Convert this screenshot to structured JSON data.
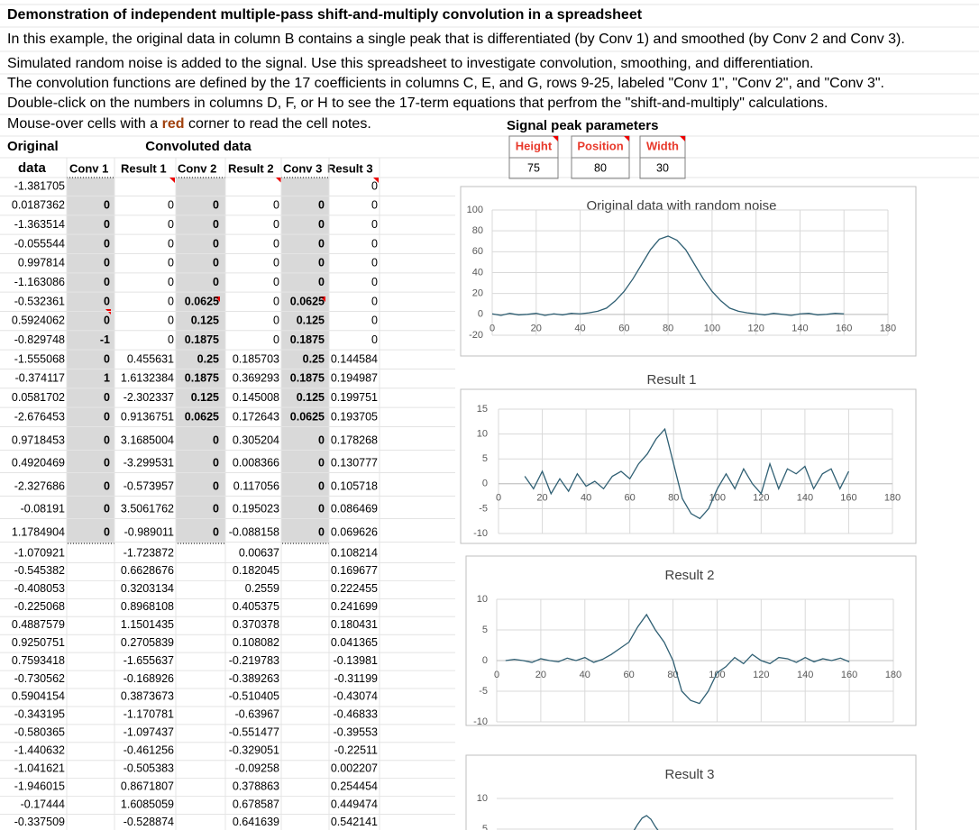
{
  "sheet": {
    "title": "Demonstration of independent multiple-pass shift-and-multiply convolution in a spreadsheet",
    "lines": [
      "In this example, the original data in column B contains a single peak that is differentiated (by Conv 1) and smoothed  (by Conv 2 and Conv 3).",
      "Simulated random noise is added to the signal. Use this spreadsheet to investigate convolution, smoothing, and differentiation.",
      "The convolution functions are defined by the 17 coefficients in columns C, E, and G, rows 9-25, labeled \"Conv 1\", \"Conv 2\", and \"Conv 3\".",
      "Double-click on the numbers in columns D, F, or H to see the 17-term equations that perfrom the \"shift-and-multiply\" calculations."
    ],
    "note": {
      "before": "Mouse-over cells with a ",
      "emphasis": "red",
      "after": " corner to read the cell notes."
    },
    "params": {
      "title": "Signal peak parameters",
      "headers": [
        "Height",
        "Position",
        "Width"
      ],
      "values": [
        "75",
        "80",
        "30"
      ]
    },
    "headers": {
      "original": "Original",
      "convoluted": "Convoluted  data",
      "columns": [
        "data",
        "Conv 1",
        "Result 1",
        "Conv 2",
        "Result 2",
        "Conv 3",
        "Result 3"
      ]
    },
    "rows": [
      [
        "-1.381705",
        null,
        null,
        null,
        null,
        null,
        "0"
      ],
      [
        "0.0187362",
        "0",
        "0",
        "0",
        "0",
        "0",
        "0"
      ],
      [
        "-1.363514",
        "0",
        "0",
        "0",
        "0",
        "0",
        "0"
      ],
      [
        "-0.055544",
        "0",
        "0",
        "0",
        "0",
        "0",
        "0"
      ],
      [
        "0.997814",
        "0",
        "0",
        "0",
        "0",
        "0",
        "0"
      ],
      [
        "-1.163086",
        "0",
        "0",
        "0",
        "0",
        "0",
        "0"
      ],
      [
        "-0.532361",
        "0",
        "0",
        "0.0625",
        "0",
        "0.0625",
        "0"
      ],
      [
        "0.5924062",
        "0",
        "0",
        "0.125",
        "0",
        "0.125",
        "0"
      ],
      [
        "-0.829748",
        "-1",
        "0",
        "0.1875",
        "0",
        "0.1875",
        "0"
      ],
      [
        "-1.555068",
        "0",
        "0.455631",
        "0.25",
        "0.185703",
        "0.25",
        "0.144584"
      ],
      [
        "-0.374117",
        "1",
        "1.6132384",
        "0.1875",
        "0.369293",
        "0.1875",
        "0.194987"
      ],
      [
        "0.0581702",
        "0",
        "-2.302337",
        "0.125",
        "0.145008",
        "0.125",
        "0.199751"
      ],
      [
        "-2.676453",
        "0",
        "0.9136751",
        "0.0625",
        "0.172643",
        "0.0625",
        "0.193705"
      ],
      [
        "0.9718453",
        "0",
        "3.1685004",
        "0",
        "0.305204",
        "0",
        "0.178268"
      ],
      [
        "0.4920469",
        "0",
        "-3.299531",
        "0",
        "0.008366",
        "0",
        "0.130777"
      ],
      [
        "-2.327686",
        "0",
        "-0.573957",
        "0",
        "0.117056",
        "0",
        "0.105718"
      ],
      [
        "-0.08191",
        "0",
        "3.5061762",
        "0",
        "0.195023",
        "0",
        "0.086469"
      ],
      [
        "1.1784904",
        "0",
        "-0.989011",
        "0",
        "-0.088158",
        "0",
        "0.069626"
      ],
      [
        "-1.070921",
        null,
        "-1.723872",
        null,
        "0.00637",
        null,
        "0.108214"
      ],
      [
        "-0.545382",
        null,
        "0.6628676",
        null,
        "0.182045",
        null,
        "0.169677"
      ],
      [
        "-0.408053",
        null,
        "0.3203134",
        null,
        "0.2559",
        null,
        "0.222455"
      ],
      [
        "-0.225068",
        null,
        "0.8968108",
        null,
        "0.405375",
        null,
        "0.241699"
      ],
      [
        "0.4887579",
        null,
        "1.1501435",
        null,
        "0.370378",
        null,
        "0.180431"
      ],
      [
        "0.9250751",
        null,
        "0.2705839",
        null,
        "0.108082",
        null,
        "0.041365"
      ],
      [
        "0.7593418",
        null,
        "-1.655637",
        null,
        "-0.219783",
        null,
        "-0.13981"
      ],
      [
        "-0.730562",
        null,
        "-0.168926",
        null,
        "-0.389263",
        null,
        "-0.31199"
      ],
      [
        "0.5904154",
        null,
        "0.3873673",
        null,
        "-0.510405",
        null,
        "-0.43074"
      ],
      [
        "-0.343195",
        null,
        "-1.170781",
        null,
        "-0.63967",
        null,
        "-0.46833"
      ],
      [
        "-0.580365",
        null,
        "-1.097437",
        null,
        "-0.551477",
        null,
        "-0.39553"
      ],
      [
        "-1.440632",
        null,
        "-0.461256",
        null,
        "-0.329051",
        null,
        "-0.22511"
      ],
      [
        "-1.041621",
        null,
        "-0.505383",
        null,
        "-0.09258",
        null,
        "0.002207"
      ],
      [
        "-1.946015",
        null,
        "0.8671807",
        null,
        "0.378863",
        null,
        "0.254454"
      ],
      [
        "-0.17444",
        null,
        "1.6085059",
        null,
        "0.678587",
        null,
        "0.449474"
      ],
      [
        "-0.337509",
        null,
        "-0.528874",
        null,
        "0.641639",
        null,
        "0.542141"
      ]
    ]
  },
  "chart_data": [
    {
      "type": "line",
      "title": "Original data with random noise",
      "color": "#2f5f73",
      "grid": true,
      "xlim": [
        0,
        180
      ],
      "xticks": [
        0,
        20,
        40,
        60,
        80,
        100,
        120,
        140,
        160,
        180
      ],
      "ylim": [
        -20,
        100
      ],
      "yticks": [
        -20,
        0,
        20,
        40,
        60,
        80,
        100
      ],
      "x": [
        0,
        4,
        8,
        12,
        16,
        20,
        24,
        28,
        32,
        36,
        40,
        44,
        48,
        52,
        56,
        60,
        64,
        68,
        72,
        76,
        80,
        84,
        88,
        92,
        96,
        100,
        104,
        108,
        112,
        116,
        120,
        124,
        128,
        132,
        136,
        140,
        144,
        148,
        152,
        156,
        160
      ],
      "values": [
        0.5,
        -1,
        1,
        -0.5,
        0,
        1,
        -1,
        0.5,
        -0.5,
        1,
        0.5,
        1.5,
        3,
        6,
        13,
        22,
        34,
        48,
        62,
        72,
        75,
        71,
        62,
        48,
        34,
        22,
        13,
        6,
        3,
        1.5,
        0.5,
        -0.5,
        1,
        0,
        -1,
        0.5,
        1,
        -0.5,
        0,
        1,
        0.5
      ]
    },
    {
      "type": "line",
      "title": "Result 1",
      "color": "#2f5f73",
      "grid": true,
      "xlim": [
        0,
        180
      ],
      "xticks": [
        0,
        20,
        40,
        60,
        80,
        100,
        120,
        140,
        160,
        180
      ],
      "ylim": [
        -10,
        15
      ],
      "yticks": [
        -10,
        -5,
        0,
        5,
        10,
        15
      ],
      "x": [
        12,
        16,
        20,
        24,
        28,
        32,
        36,
        40,
        44,
        48,
        52,
        56,
        60,
        64,
        68,
        72,
        76,
        80,
        84,
        88,
        92,
        96,
        100,
        104,
        108,
        112,
        116,
        120,
        124,
        128,
        132,
        136,
        140,
        144,
        148,
        152,
        156,
        160
      ],
      "values": [
        1.5,
        -1,
        2.5,
        -2,
        1,
        -1.5,
        2,
        -0.5,
        0.5,
        -1,
        1.5,
        2.5,
        1,
        4,
        6,
        9,
        11,
        4,
        -3,
        -6,
        -7,
        -5,
        -1,
        2,
        -1,
        3,
        0,
        -2,
        4,
        -1,
        3,
        2,
        3.5,
        -1,
        2,
        3,
        -1,
        2.5
      ]
    },
    {
      "type": "line",
      "title": "Result 2",
      "color": "#2f5f73",
      "grid": true,
      "xlim": [
        0,
        180
      ],
      "xticks": [
        0,
        20,
        40,
        60,
        80,
        100,
        120,
        140,
        160,
        180
      ],
      "ylim": [
        -10,
        10
      ],
      "yticks": [
        -10,
        -5,
        0,
        5,
        10
      ],
      "x": [
        4,
        8,
        12,
        16,
        20,
        24,
        28,
        32,
        36,
        40,
        44,
        48,
        52,
        56,
        60,
        64,
        68,
        72,
        76,
        80,
        84,
        88,
        92,
        96,
        100,
        104,
        108,
        112,
        116,
        120,
        124,
        128,
        132,
        136,
        140,
        144,
        148,
        152,
        156,
        160
      ],
      "values": [
        0,
        0.2,
        0,
        -0.3,
        0.3,
        0,
        -0.2,
        0.4,
        0,
        0.5,
        -0.3,
        0.2,
        1,
        2,
        3,
        5.5,
        7.5,
        5,
        3,
        0,
        -5,
        -6.5,
        -7,
        -5,
        -2,
        -1,
        0.5,
        -0.5,
        1,
        0,
        -0.5,
        0.5,
        0.3,
        -0.3,
        0.5,
        -0.2,
        0.3,
        0,
        0.4,
        -0.2
      ]
    },
    {
      "type": "line",
      "title": "Result 3",
      "color": "#2f5f73",
      "grid": true,
      "xlim": [
        0,
        180
      ],
      "ylim": [
        -10,
        10
      ],
      "yticks": [
        5,
        10
      ],
      "x": [
        62,
        64,
        66,
        68,
        70,
        72,
        74
      ],
      "values": [
        4.6,
        5.8,
        6.8,
        7.2,
        6.6,
        5.4,
        4.4
      ]
    }
  ]
}
